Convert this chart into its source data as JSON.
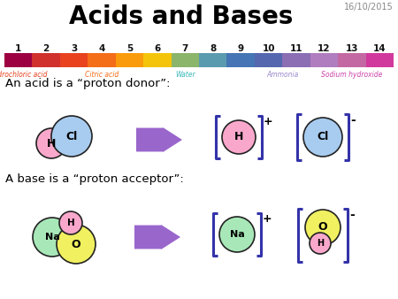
{
  "title": "Acids and Bases",
  "date": "16/10/2015",
  "bg_color": "#ffffff",
  "title_fontsize": 20,
  "ph_numbers": [
    "1",
    "2",
    "3",
    "4",
    "5",
    "6",
    "7",
    "8",
    "9",
    "10",
    "11",
    "12",
    "13",
    "14"
  ],
  "ph_colors": [
    "#9e0142",
    "#d0312d",
    "#e8431e",
    "#f46d19",
    "#f99b0c",
    "#f4c40a",
    "#8ab56b",
    "#5b9baf",
    "#4575b4",
    "#5567ae",
    "#8b6eb4",
    "#b07dbf",
    "#c468a3",
    "#d1399c"
  ],
  "label_hydrochloric": "Hydrochloric acid",
  "label_citric": "Citric acid",
  "label_water": "Water",
  "label_ammonia": "Ammonia",
  "label_sodium": "Sodium hydroxide",
  "label_hydrochloric_color": "#e8431e",
  "label_citric_color": "#f46d19",
  "label_water_color": "#3ab8b8",
  "label_ammonia_color": "#9988cc",
  "label_sodium_color": "#cc44aa",
  "acid_text": "An acid is a “proton donor”:",
  "base_text": "A base is a “proton acceptor”:",
  "H_color": "#f9a8cc",
  "Cl_color": "#a8ccf0",
  "Na_color": "#a8e8b8",
  "O_color": "#f0f060",
  "arrow_color": "#9966cc",
  "bracket_color": "#3333aa",
  "text_color": "#000000"
}
